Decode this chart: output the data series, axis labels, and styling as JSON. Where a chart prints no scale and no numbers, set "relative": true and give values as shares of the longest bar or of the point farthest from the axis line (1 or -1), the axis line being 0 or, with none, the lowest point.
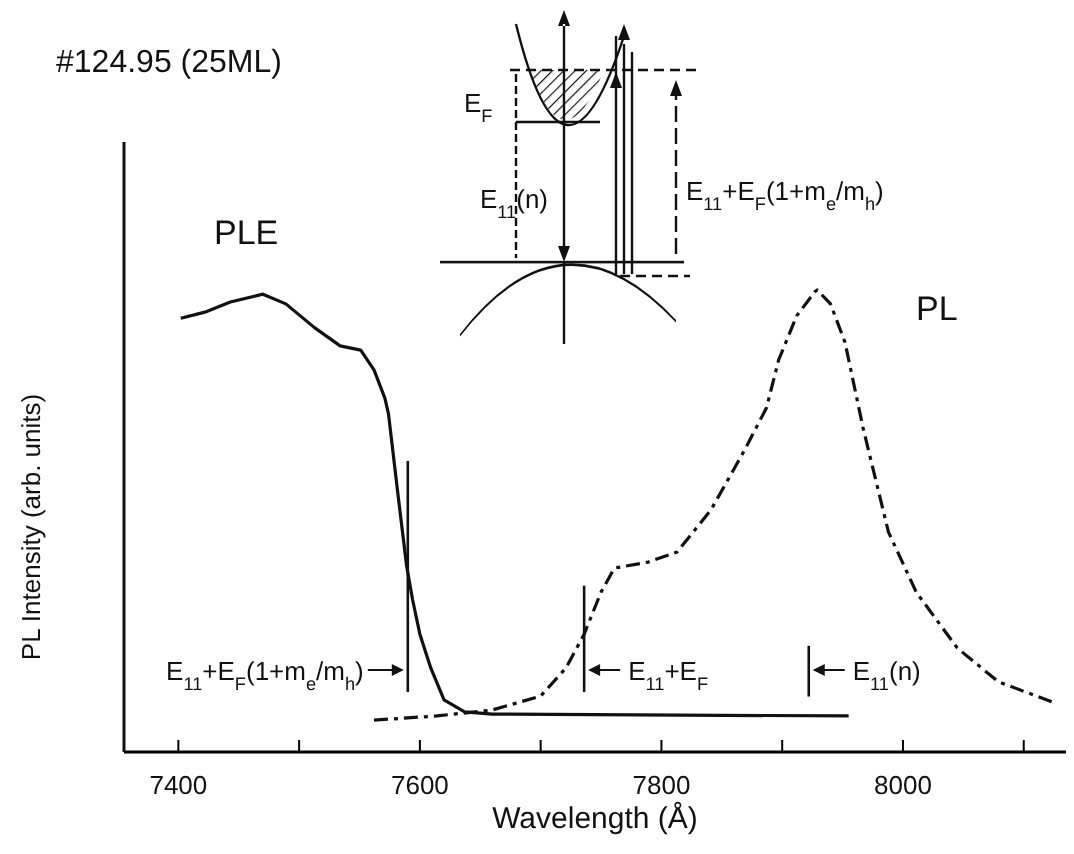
{
  "chart_data": {
    "type": "line",
    "title": "#124.95 (25ML)",
    "xlabel": "Wavelength (Å)",
    "ylabel": "PL Intensity (arb. units)",
    "relative": true,
    "xlim": [
      7355,
      8135
    ],
    "xticks": [
      7400,
      {
        "value": 7500,
        "label": null
      },
      7600,
      {
        "value": 7700,
        "label": null
      },
      7800,
      {
        "value": 7900,
        "label": null
      },
      8000,
      {
        "value": 8100,
        "label": null
      }
    ],
    "series": [
      {
        "name": "PLE",
        "color": "#111111",
        "line_style": "solid",
        "x": [
          7402,
          7422,
          7443,
          7470,
          7489,
          7513,
          7534,
          7551,
          7562,
          7571,
          7574,
          7582,
          7589,
          7594,
          7600,
          7609,
          7620,
          7637,
          7660,
          7955
        ],
        "values": [
          0.939,
          0.952,
          0.974,
          0.991,
          0.97,
          0.918,
          0.879,
          0.87,
          0.827,
          0.766,
          0.732,
          0.554,
          0.403,
          0.329,
          0.255,
          0.182,
          0.113,
          0.087,
          0.082,
          0.078
        ]
      },
      {
        "name": "PL",
        "color": "#111111",
        "line_style": "dashed",
        "x": [
          7562,
          7614,
          7660,
          7700,
          7721,
          7736,
          7750,
          7761,
          7789,
          7813,
          7841,
          7869,
          7887,
          7897,
          7912,
          7927,
          7929,
          7940,
          7952,
          7967,
          7988,
          8011,
          8045,
          8079,
          8124
        ],
        "values": [
          0.069,
          0.078,
          0.091,
          0.121,
          0.182,
          0.255,
          0.346,
          0.398,
          0.411,
          0.433,
          0.524,
          0.654,
          0.745,
          0.848,
          0.944,
          0.996,
          1.0,
          0.97,
          0.887,
          0.701,
          0.476,
          0.346,
          0.225,
          0.152,
          0.108
        ]
      }
    ],
    "ref_lines": [
      {
        "axis": "x",
        "value": 7590,
        "label": "E$_{11}$+E$_{F}$(1+m$_{e}$/m$_{h}$)"
      },
      {
        "axis": "x",
        "value": 7736,
        "label": "E$_{11}$+E$_{F}$"
      },
      {
        "axis": "x",
        "value": 7922,
        "label": "E$_{11}$(n)"
      }
    ],
    "annotations": [
      "E$_{F}$",
      "E$_{11}$(n)",
      "E$_{11}$+E$_{F}$(1+m$_{e}$/m$_{h}$)"
    ],
    "grid": false
  }
}
